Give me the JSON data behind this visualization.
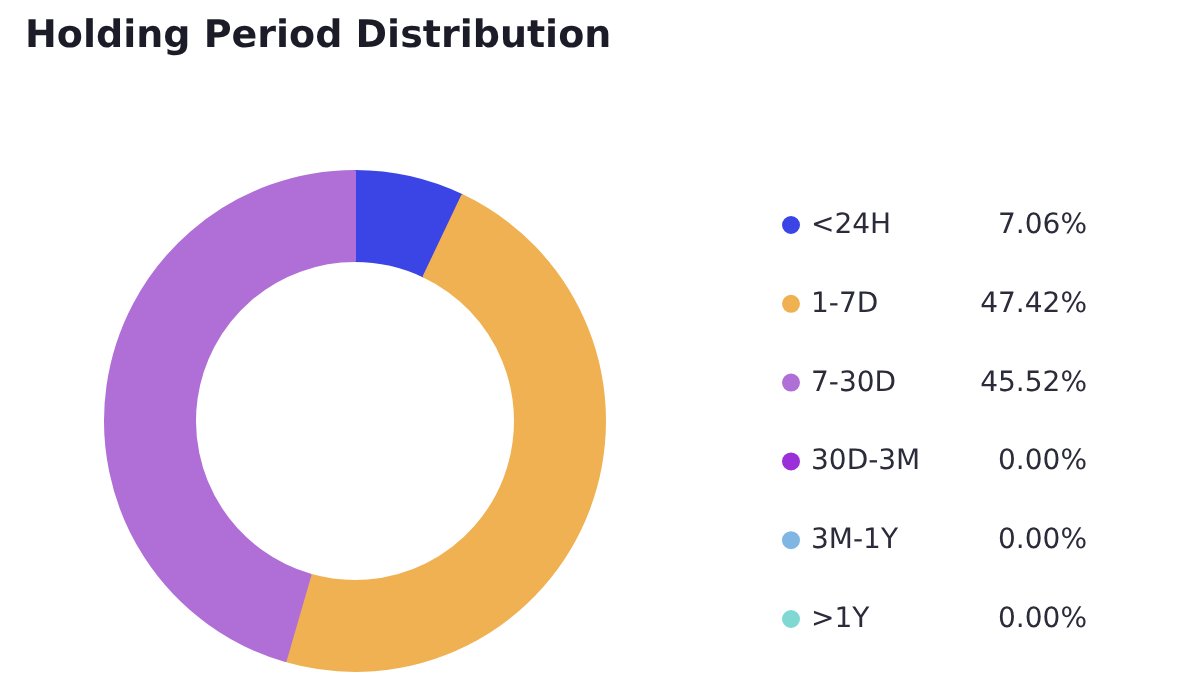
{
  "chart_data": {
    "type": "donut",
    "title": "Holding Period Distribution",
    "categories": [
      "<24H",
      "1-7D",
      "7-30D",
      "30D-3M",
      "3M-1Y",
      ">1Y"
    ],
    "values": [
      7.06,
      47.42,
      45.52,
      0,
      0,
      0
    ],
    "value_labels": [
      "7.06%",
      "47.42%",
      "45.52%",
      "0.00%",
      "0.00%",
      "0.00%"
    ],
    "colors": [
      "#3b45e6",
      "#f0b152",
      "#b06fd6",
      "#9b2fd9",
      "#7fb6e3",
      "#7fd8d2"
    ],
    "legend": "right"
  }
}
